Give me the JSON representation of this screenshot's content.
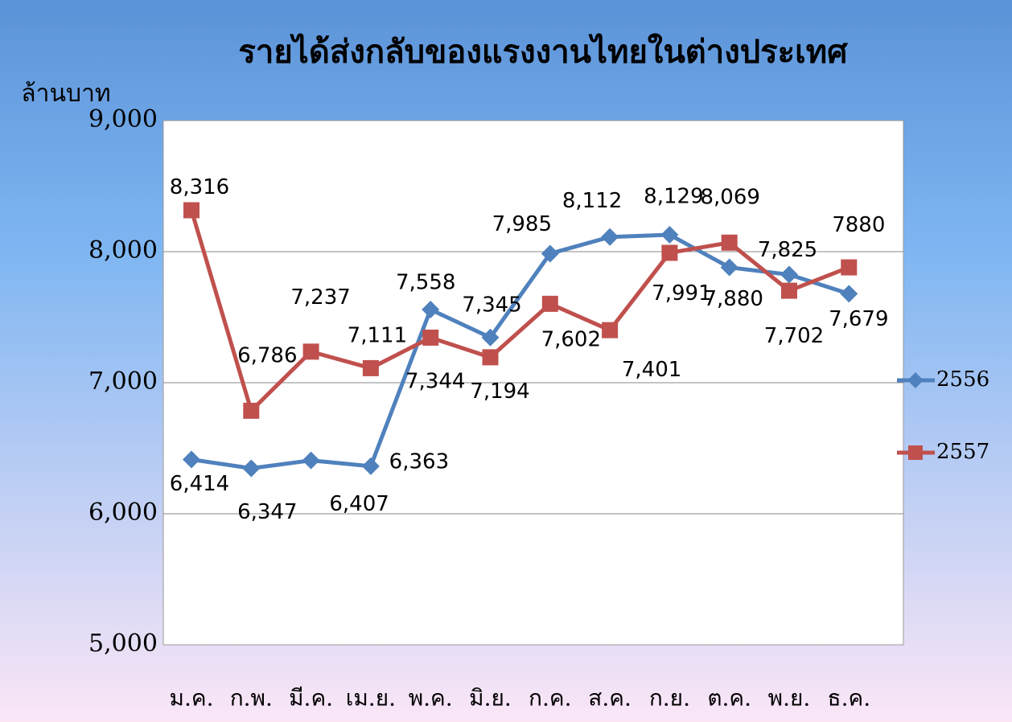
{
  "chart_data": {
    "type": "line",
    "title": "รายได้ส่งกลับของแรงงานไทยในต่างประเทศ",
    "y_label": "ล้านบาท",
    "categories": [
      "ม.ค.",
      "ก.พ.",
      "มี.ค.",
      "เม.ย.",
      "พ.ค.",
      "มิ.ย.",
      "ก.ค.",
      "ส.ค.",
      "ก.ย.",
      "ต.ค.",
      "พ.ย.",
      "ธ.ค."
    ],
    "series": [
      {
        "name": "2556",
        "color": "#4f81bd",
        "marker": "diamond",
        "values": [
          6414,
          6347,
          6407,
          6363,
          7558,
          7345,
          7985,
          8112,
          8129,
          7880,
          7825,
          7679
        ],
        "value_labels": [
          "6,414",
          "6,347",
          "6,407",
          "6,363",
          "7,558",
          "7,345",
          "7,985",
          "8,112",
          "8,129",
          "7,880",
          "7,825",
          "7,679"
        ]
      },
      {
        "name": "2557",
        "color": "#c0504d",
        "marker": "square",
        "values": [
          8316,
          6786,
          7237,
          7111,
          7344,
          7194,
          7602,
          7401,
          7991,
          8069,
          7702,
          7880
        ],
        "value_labels": [
          "8,316",
          "6,786",
          "7,237",
          "7,111",
          "7,344",
          "7,194",
          "7,602",
          "7,401",
          "7,991",
          "8,069",
          "7,702",
          "7880"
        ]
      }
    ],
    "ylim": [
      5000,
      9000
    ],
    "yticks": [
      {
        "value": 5000,
        "label": "5,000"
      },
      {
        "value": 6000,
        "label": "6,000"
      },
      {
        "value": 7000,
        "label": "7,000"
      },
      {
        "value": 8000,
        "label": "8,000"
      },
      {
        "value": 9000,
        "label": "9,000"
      }
    ],
    "grid": true,
    "legend": "right"
  }
}
